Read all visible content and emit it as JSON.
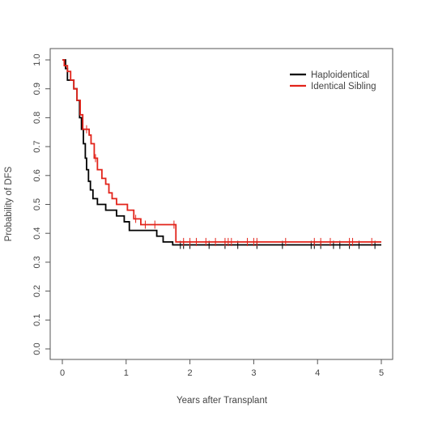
{
  "chart_data": {
    "type": "line",
    "step": true,
    "title": "",
    "xlabel": "Years after Transplant",
    "ylabel": "Probability of DFS",
    "xlim": [
      0,
      5
    ],
    "ylim": [
      0,
      1
    ],
    "xticks": [
      "0",
      "1",
      "2",
      "3",
      "4",
      "5"
    ],
    "yticks": [
      "0.0",
      "0.1",
      "0.2",
      "0.3",
      "0.4",
      "0.5",
      "0.6",
      "0.7",
      "0.8",
      "0.9",
      "1.0"
    ],
    "grid": false,
    "legend_position": "top-right",
    "series": [
      {
        "name": "Haploidentical",
        "color": "#000000",
        "points": [
          [
            0,
            1.0
          ],
          [
            0.05,
            0.97
          ],
          [
            0.08,
            0.93
          ],
          [
            0.18,
            0.9
          ],
          [
            0.23,
            0.86
          ],
          [
            0.27,
            0.8
          ],
          [
            0.3,
            0.76
          ],
          [
            0.33,
            0.71
          ],
          [
            0.36,
            0.66
          ],
          [
            0.38,
            0.62
          ],
          [
            0.41,
            0.58
          ],
          [
            0.44,
            0.55
          ],
          [
            0.48,
            0.52
          ],
          [
            0.55,
            0.5
          ],
          [
            0.68,
            0.48
          ],
          [
            0.85,
            0.46
          ],
          [
            0.97,
            0.44
          ],
          [
            1.05,
            0.41
          ],
          [
            1.35,
            0.41
          ],
          [
            1.48,
            0.39
          ],
          [
            1.58,
            0.37
          ],
          [
            1.73,
            0.36
          ],
          [
            5.0,
            0.36
          ]
        ],
        "censor_x": [
          1.85,
          1.9,
          2.0,
          2.3,
          2.55,
          2.75,
          3.05,
          3.45,
          3.9,
          3.95,
          4.05,
          4.25,
          4.35,
          4.5,
          4.65,
          4.9
        ]
      },
      {
        "name": "Identical Sibling",
        "color": "#e2231a",
        "points": [
          [
            0,
            1.0
          ],
          [
            0.03,
            0.98
          ],
          [
            0.08,
            0.96
          ],
          [
            0.13,
            0.93
          ],
          [
            0.18,
            0.9
          ],
          [
            0.23,
            0.86
          ],
          [
            0.28,
            0.81
          ],
          [
            0.32,
            0.76
          ],
          [
            0.42,
            0.74
          ],
          [
            0.45,
            0.71
          ],
          [
            0.5,
            0.66
          ],
          [
            0.55,
            0.62
          ],
          [
            0.62,
            0.59
          ],
          [
            0.68,
            0.57
          ],
          [
            0.73,
            0.54
          ],
          [
            0.78,
            0.52
          ],
          [
            0.85,
            0.5
          ],
          [
            1.02,
            0.48
          ],
          [
            1.12,
            0.45
          ],
          [
            1.23,
            0.43
          ],
          [
            1.5,
            0.43
          ],
          [
            1.78,
            0.43
          ],
          [
            1.78,
            0.37
          ],
          [
            5.0,
            0.37
          ]
        ],
        "censor_x": [
          0.38,
          0.52,
          1.15,
          1.3,
          1.45,
          1.75,
          1.9,
          2.0,
          2.1,
          2.25,
          2.4,
          2.55,
          2.6,
          2.65,
          2.9,
          3.0,
          3.05,
          3.5,
          3.95,
          4.05,
          4.2,
          4.5,
          4.55,
          4.85
        ]
      }
    ]
  }
}
